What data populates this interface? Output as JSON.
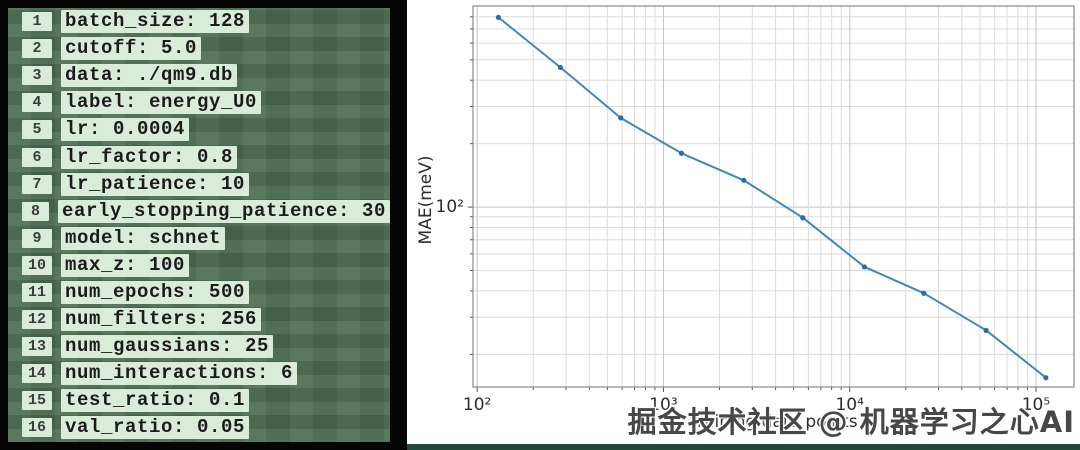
{
  "code_panel": {
    "lines": [
      {
        "num": "1",
        "text": "batch_size: 128"
      },
      {
        "num": "2",
        "text": "cutoff: 5.0"
      },
      {
        "num": "3",
        "text": "data: ./qm9.db"
      },
      {
        "num": "4",
        "text": "label: energy_U0"
      },
      {
        "num": "5",
        "text": "lr: 0.0004"
      },
      {
        "num": "6",
        "text": "lr_factor: 0.8"
      },
      {
        "num": "7",
        "text": "lr_patience: 10"
      },
      {
        "num": "8",
        "text": "early_stopping_patience: 30"
      },
      {
        "num": "9",
        "text": "model: schnet"
      },
      {
        "num": "10",
        "text": "max_z: 100"
      },
      {
        "num": "11",
        "text": "num_epochs: 500"
      },
      {
        "num": "12",
        "text": "num_filters: 256"
      },
      {
        "num": "13",
        "text": "num_gaussians: 25"
      },
      {
        "num": "14",
        "text": "num_interactions: 6"
      },
      {
        "num": "15",
        "text": "test_ratio: 0.1"
      },
      {
        "num": "16",
        "text": "val_ratio: 0.05"
      }
    ]
  },
  "chart_data": {
    "type": "line",
    "title": "",
    "xlabel": "training data points",
    "ylabel": "MAE(meV)",
    "xscale": "log",
    "yscale": "log",
    "grid": true,
    "x": [
      130,
      280,
      590,
      1250,
      2700,
      5600,
      12000,
      25000,
      54000,
      113000
    ],
    "y": [
      795,
      460,
      265,
      180,
      134,
      89,
      52,
      39,
      26,
      15.5
    ],
    "xlim": [
      95,
      160000
    ],
    "ylim": [
      14,
      900
    ],
    "x_tick_labels": [
      "10²",
      "10³",
      "10⁴",
      "10⁵"
    ],
    "x_tick_values": [
      100,
      1000,
      10000,
      100000
    ],
    "y_tick_labels": [
      "10²"
    ],
    "y_tick_values": [
      100
    ],
    "legend": null
  },
  "watermark": {
    "text": "掘金技术社区 @ 机器学习之心AI"
  },
  "colors": {
    "code_bg": "#4a6b50",
    "code_chip": "#d8ecd8",
    "line": "#4187bf",
    "marker": "#2f6ba8",
    "grid_minor": "#dcdcdc",
    "grid_major": "#c4c4c4",
    "spine": "#8a8a8a",
    "bottom_strip": "#1f4a3a"
  }
}
